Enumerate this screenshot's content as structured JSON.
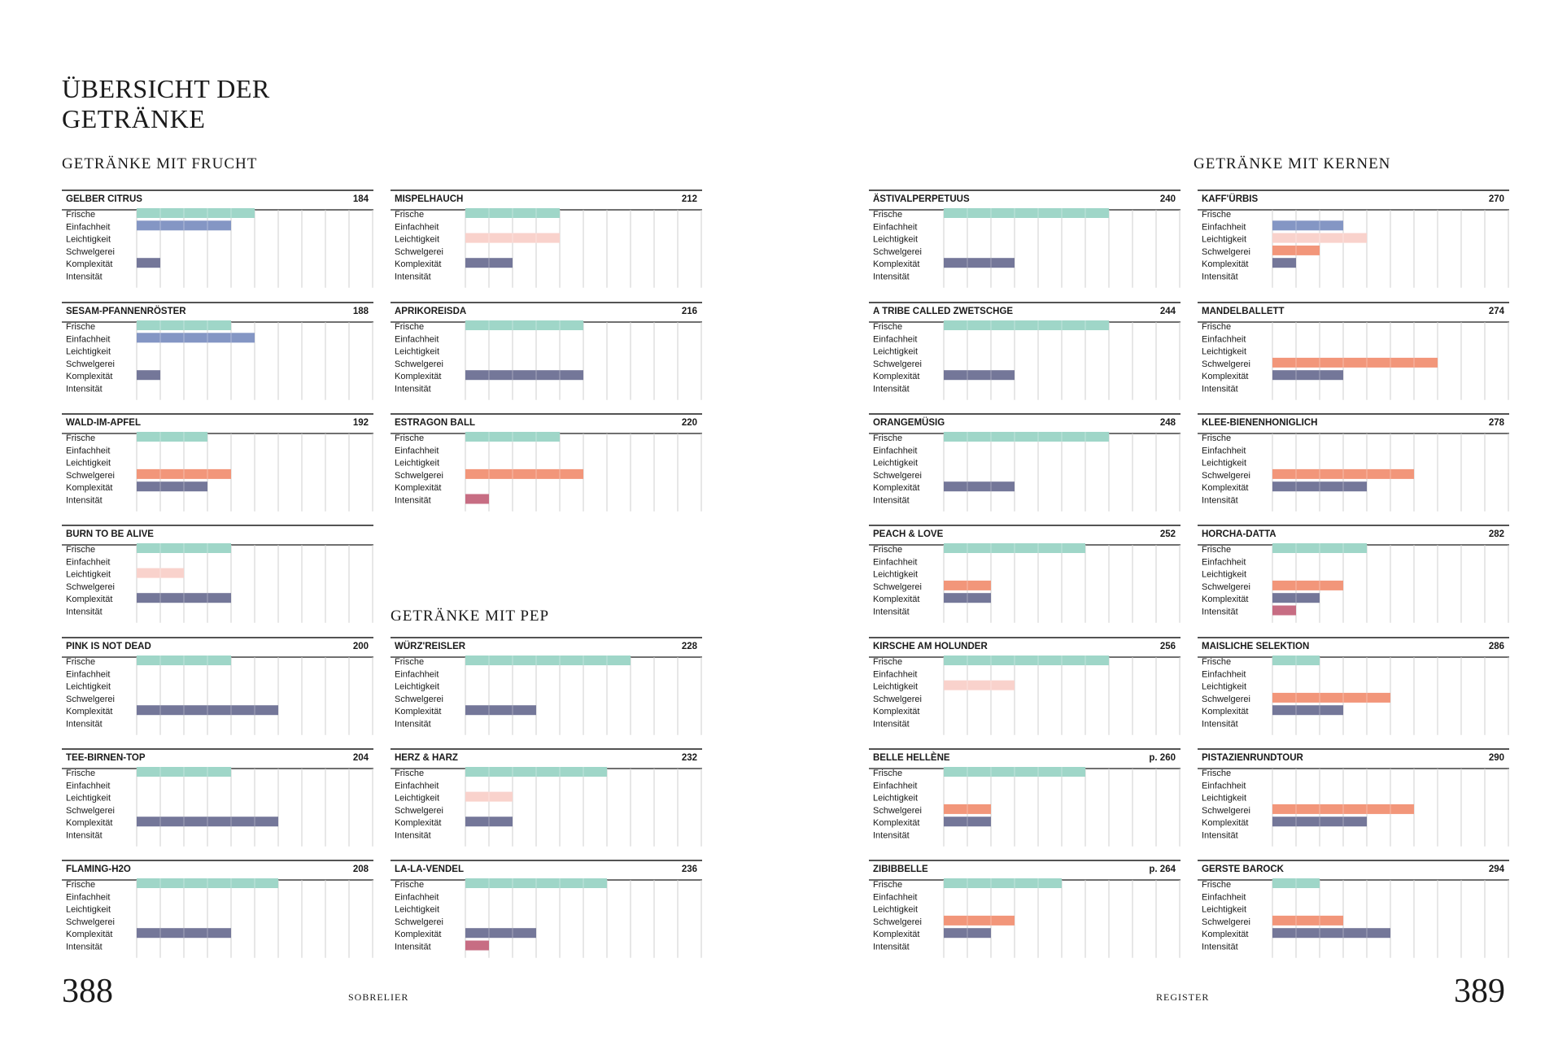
{
  "spread": {
    "title": "ÜBERSICHT DER\nGETRÄNKE",
    "left_page_number": "388",
    "right_page_number": "389",
    "left_running_head": "SOBRELIER",
    "right_running_head": "REGISTER"
  },
  "sections": {
    "frucht": "GETRÄNKE MIT FRUCHT",
    "pep": "GETRÄNKE MIT PEP",
    "kernen": "GETRÄNKE MIT KERNEN"
  },
  "colors": {
    "frische": "#9fd6c8",
    "einfachheit": "#8496c4",
    "leichtigkeit": "#f9d2cc",
    "schwelgerei": "#f2967a",
    "komplexitaet": "#747799",
    "intensitaet": "#c76d83"
  },
  "chart_data": {
    "type": "bar",
    "categories": [
      "Frische",
      "Einfachheit",
      "Leichtigkeit",
      "Schwelgerei",
      "Komplexität",
      "Intensität"
    ],
    "xlim": [
      0,
      10
    ],
    "grid": true,
    "drinks": [
      {
        "name": "GELBER CITRUS",
        "page": "184",
        "values": [
          5,
          4,
          0,
          0,
          1,
          0
        ]
      },
      {
        "name": "SESAM-PFANNENRÖSTER",
        "page": "188",
        "values": [
          4,
          5,
          0,
          0,
          1,
          0
        ]
      },
      {
        "name": "WALD-IM-APFEL",
        "page": "192",
        "values": [
          3,
          0,
          0,
          4,
          3,
          0
        ]
      },
      {
        "name": "BURN TO BE ALIVE",
        "page": "",
        "values": [
          4,
          0,
          2,
          0,
          4,
          0
        ]
      },
      {
        "name": "PINK IS NOT DEAD",
        "page": "200",
        "values": [
          4,
          0,
          0,
          0,
          6,
          0
        ]
      },
      {
        "name": "TEE-BIRNEN-TOP",
        "page": "204",
        "values": [
          4,
          0,
          0,
          0,
          6,
          0
        ]
      },
      {
        "name": "FLAMING-H2O",
        "page": "208",
        "values": [
          6,
          0,
          0,
          0,
          4,
          0
        ]
      },
      {
        "name": "MISPELHAUCH",
        "page": "212",
        "values": [
          4,
          0,
          4,
          0,
          2,
          0
        ]
      },
      {
        "name": "APRIKOREISDA",
        "page": "216",
        "values": [
          5,
          0,
          0,
          0,
          5,
          0
        ]
      },
      {
        "name": "ESTRAGON BALL",
        "page": "220",
        "values": [
          4,
          0,
          0,
          5,
          0,
          1
        ]
      },
      {
        "name": "WÜRZ'REISLER",
        "page": "228",
        "values": [
          7,
          0,
          0,
          0,
          3,
          0
        ]
      },
      {
        "name": "HERZ & HARZ",
        "page": "232",
        "values": [
          6,
          0,
          2,
          0,
          2,
          0
        ]
      },
      {
        "name": "LA-LA-VENDEL",
        "page": "236",
        "values": [
          6,
          0,
          0,
          0,
          3,
          1
        ]
      },
      {
        "name": "ÄSTIVALPERPETUUS",
        "page": "240",
        "values": [
          7,
          0,
          0,
          0,
          3,
          0
        ]
      },
      {
        "name": "A TRIBE CALLED ZWETSCHGE",
        "page": "244",
        "values": [
          7,
          0,
          0,
          0,
          3,
          0
        ]
      },
      {
        "name": "ORANGEMÜSIG",
        "page": "248",
        "values": [
          7,
          0,
          0,
          0,
          3,
          0
        ]
      },
      {
        "name": "PEACH & LOVE",
        "page": "252",
        "values": [
          6,
          0,
          0,
          2,
          2,
          0
        ]
      },
      {
        "name": "KIRSCHE AM HOLUNDER",
        "page": "256",
        "values": [
          7,
          0,
          3,
          0,
          0,
          0
        ]
      },
      {
        "name": "BELLE HELLÈNE",
        "page": "p. 260",
        "values": [
          6,
          0,
          0,
          2,
          2,
          0
        ]
      },
      {
        "name": "ZIBIBBELLE",
        "page": "p. 264",
        "values": [
          5,
          0,
          0,
          3,
          2,
          0
        ]
      },
      {
        "name": "KAFF'ÜRBIS",
        "page": "270",
        "values": [
          0,
          3,
          4,
          2,
          1,
          0
        ]
      },
      {
        "name": "MANDELBALLETT",
        "page": "274",
        "values": [
          0,
          0,
          0,
          7,
          3,
          0
        ]
      },
      {
        "name": "KLEE-BIENENHONIGLICH",
        "page": "278",
        "values": [
          0,
          0,
          0,
          6,
          4,
          0
        ]
      },
      {
        "name": "HORCHA-DATTA",
        "page": "282",
        "values": [
          4,
          0,
          0,
          3,
          2,
          1
        ]
      },
      {
        "name": "MAISLICHE SELEKTION",
        "page": "286",
        "values": [
          2,
          0,
          0,
          5,
          3,
          0
        ]
      },
      {
        "name": "PISTAZIENRUNDTOUR",
        "page": "290",
        "values": [
          0,
          0,
          0,
          6,
          4,
          0
        ]
      },
      {
        "name": "GERSTE BAROCK",
        "page": "294",
        "values": [
          2,
          0,
          0,
          3,
          5,
          0
        ]
      }
    ]
  }
}
